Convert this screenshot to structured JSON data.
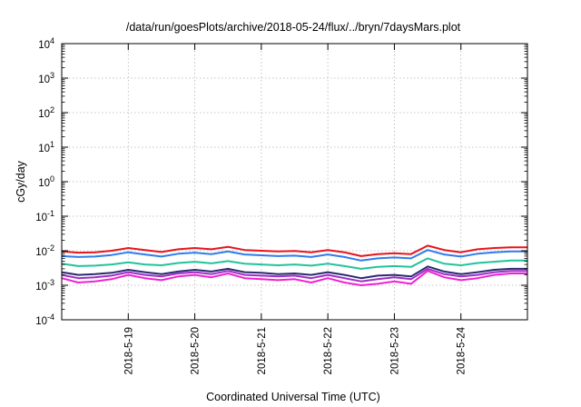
{
  "chart_data": {
    "type": "line",
    "title": "/data/run/goesPlots/archive/2018-05-24/flux/../bryn/7daysMars.plot",
    "xlabel": "Coordinated Universal Time (UTC)",
    "ylabel": "cGy/day",
    "yscale": "log",
    "ylim": [
      0.0001,
      10000
    ],
    "yticks": [
      {
        "base": "10",
        "exp": "4"
      },
      {
        "base": "10",
        "exp": "3"
      },
      {
        "base": "10",
        "exp": "2"
      },
      {
        "base": "10",
        "exp": "1"
      },
      {
        "base": "10",
        "exp": "0"
      },
      {
        "base": "10",
        "exp": "-1"
      },
      {
        "base": "10",
        "exp": "-2"
      },
      {
        "base": "10",
        "exp": "-3"
      },
      {
        "base": "10",
        "exp": "-4"
      }
    ],
    "xlim": [
      "2018-05-18 00:00",
      "2018-05-25 00:00"
    ],
    "xticks": [
      "2018-5-19",
      "2018-5-20",
      "2018-5-21",
      "2018-5-22",
      "2018-5-23",
      "2018-5-24"
    ],
    "grid": true,
    "x": [
      "2018-05-18 00:00",
      "2018-05-18 06:00",
      "2018-05-18 12:00",
      "2018-05-18 18:00",
      "2018-05-19 00:00",
      "2018-05-19 06:00",
      "2018-05-19 12:00",
      "2018-05-19 18:00",
      "2018-05-20 00:00",
      "2018-05-20 06:00",
      "2018-05-20 12:00",
      "2018-05-20 18:00",
      "2018-05-21 00:00",
      "2018-05-21 06:00",
      "2018-05-21 12:00",
      "2018-05-21 18:00",
      "2018-05-22 00:00",
      "2018-05-22 06:00",
      "2018-05-22 12:00",
      "2018-05-22 18:00",
      "2018-05-23 00:00",
      "2018-05-23 06:00",
      "2018-05-23 12:00",
      "2018-05-23 18:00",
      "2018-05-24 00:00",
      "2018-05-24 06:00",
      "2018-05-24 12:00",
      "2018-05-24 18:00",
      "2018-05-25 00:00"
    ],
    "series": [
      {
        "color": "#e8141c",
        "values": [
          0.0095,
          0.0088,
          0.009,
          0.01,
          0.012,
          0.0105,
          0.0092,
          0.011,
          0.012,
          0.011,
          0.013,
          0.0105,
          0.01,
          0.0095,
          0.0098,
          0.009,
          0.0105,
          0.009,
          0.007,
          0.008,
          0.0085,
          0.008,
          0.014,
          0.0105,
          0.009,
          0.011,
          0.012,
          0.0125,
          0.0125
        ]
      },
      {
        "color": "#2f7de8",
        "values": [
          0.007,
          0.0066,
          0.0068,
          0.0075,
          0.009,
          0.0078,
          0.0068,
          0.0082,
          0.0088,
          0.008,
          0.0095,
          0.0078,
          0.0074,
          0.007,
          0.0072,
          0.0066,
          0.0078,
          0.0066,
          0.0052,
          0.006,
          0.0064,
          0.006,
          0.0105,
          0.0078,
          0.0068,
          0.0082,
          0.009,
          0.0095,
          0.0095
        ]
      },
      {
        "color": "#22c39a",
        "values": [
          0.0042,
          0.0036,
          0.0037,
          0.004,
          0.0046,
          0.004,
          0.0038,
          0.0044,
          0.0048,
          0.0043,
          0.005,
          0.0042,
          0.004,
          0.0038,
          0.004,
          0.0037,
          0.0042,
          0.0036,
          0.003,
          0.0034,
          0.0036,
          0.0034,
          0.006,
          0.0042,
          0.0038,
          0.0044,
          0.0048,
          0.0052,
          0.0052
        ]
      },
      {
        "color": "#2a2a6e",
        "values": [
          0.0024,
          0.002,
          0.0021,
          0.0023,
          0.0028,
          0.0024,
          0.0021,
          0.0025,
          0.0028,
          0.0025,
          0.003,
          0.0024,
          0.0023,
          0.0021,
          0.0022,
          0.002,
          0.0024,
          0.002,
          0.0016,
          0.0019,
          0.002,
          0.0018,
          0.0035,
          0.0025,
          0.0021,
          0.0024,
          0.0028,
          0.003,
          0.003
        ]
      },
      {
        "color": "#a02cc8",
        "values": [
          0.002,
          0.0016,
          0.0017,
          0.0019,
          0.0024,
          0.002,
          0.0018,
          0.0022,
          0.0024,
          0.0021,
          0.0026,
          0.002,
          0.0019,
          0.0018,
          0.0019,
          0.0016,
          0.002,
          0.0016,
          0.0013,
          0.0015,
          0.0017,
          0.0015,
          0.003,
          0.0021,
          0.0018,
          0.002,
          0.0024,
          0.0026,
          0.0026
        ]
      },
      {
        "color": "#ee22d2",
        "values": [
          0.0016,
          0.0012,
          0.0013,
          0.0015,
          0.002,
          0.0016,
          0.0014,
          0.0018,
          0.002,
          0.0017,
          0.0022,
          0.0016,
          0.0015,
          0.0014,
          0.0015,
          0.0012,
          0.0016,
          0.0012,
          0.001,
          0.0011,
          0.0013,
          0.0011,
          0.0026,
          0.0017,
          0.0014,
          0.0016,
          0.002,
          0.0022,
          0.0022
        ]
      }
    ]
  }
}
